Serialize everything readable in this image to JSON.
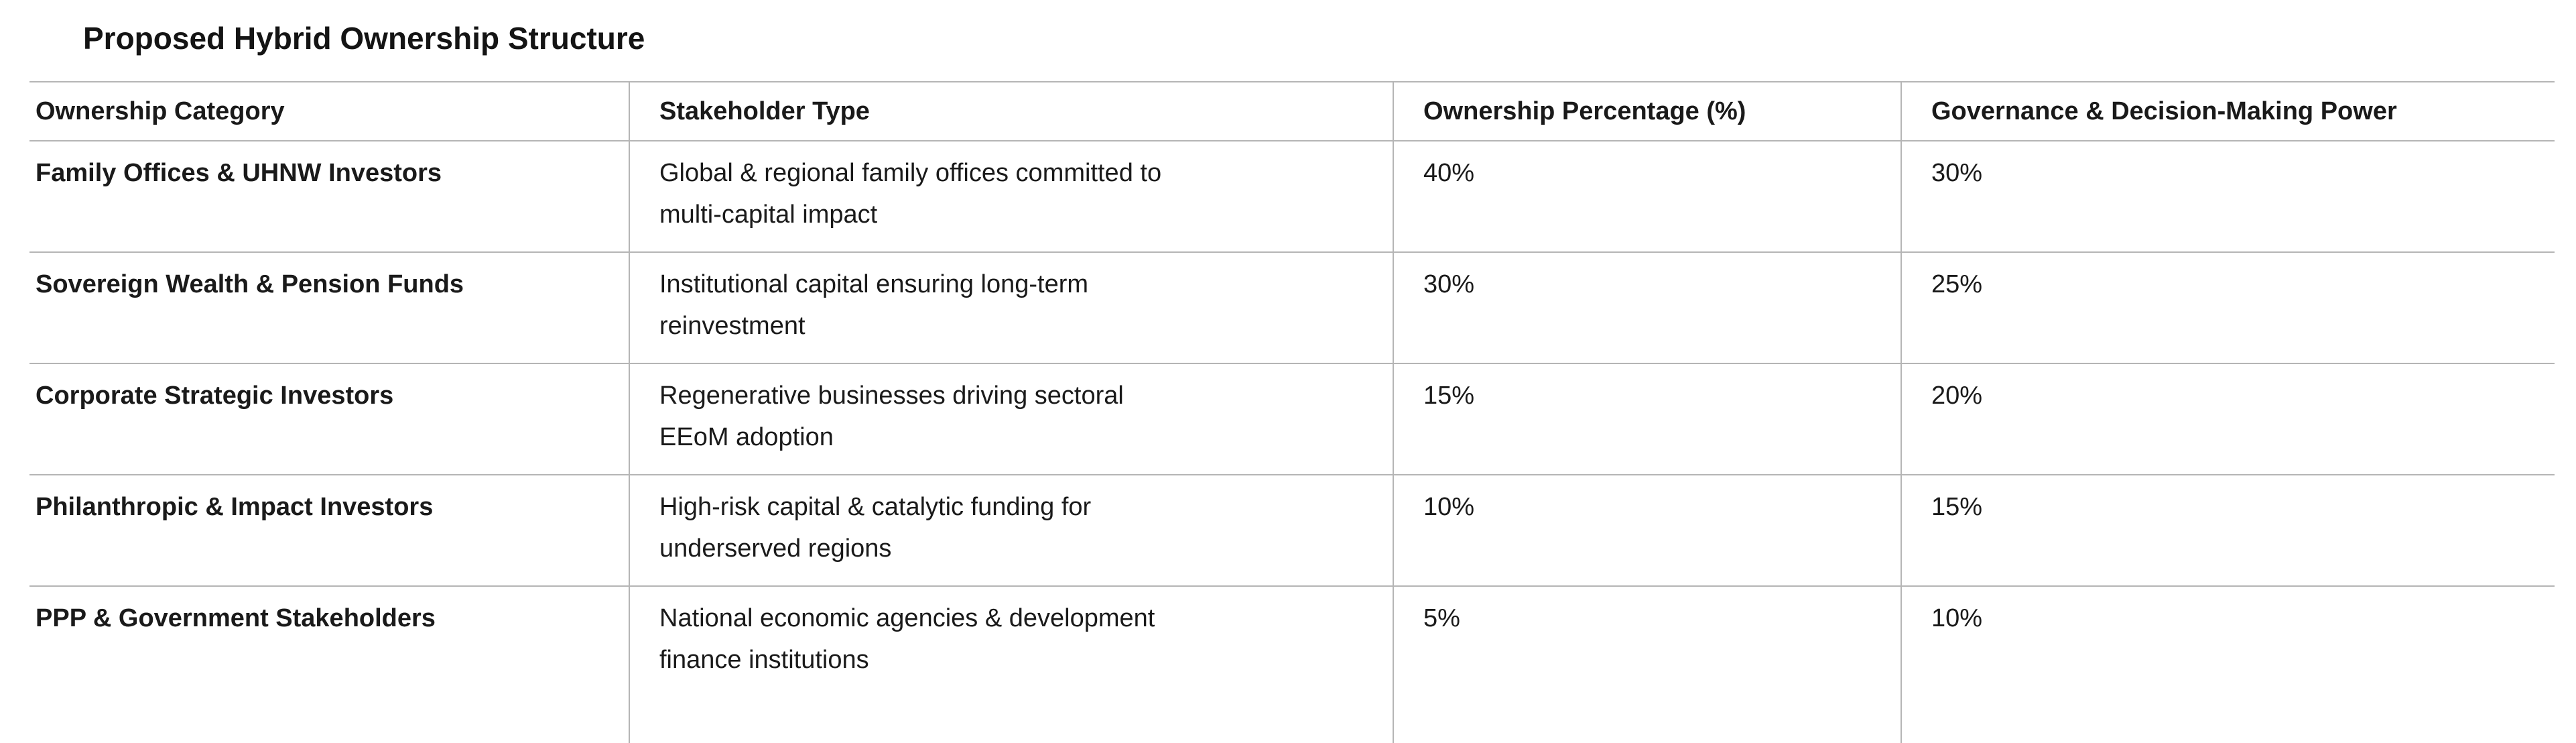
{
  "title": "Proposed Hybrid Ownership Structure",
  "colors": {
    "border": "#b5b5b5",
    "text": "#1a1a1a",
    "background": "#ffffff"
  },
  "table": {
    "columns": [
      "Ownership Category",
      "Stakeholder Type",
      "Ownership Percentage (%)",
      "Governance & Decision-Making Power"
    ],
    "rows": [
      {
        "category": "Family Offices & UHNW Investors",
        "type_lines": [
          "Global & regional family offices committed to",
          "multi-capital impact"
        ],
        "ownership_pct": "40%",
        "governance_pct": "30%"
      },
      {
        "category": "Sovereign Wealth & Pension Funds",
        "type_lines": [
          "Institutional capital ensuring long-term",
          "reinvestment"
        ],
        "ownership_pct": "30%",
        "governance_pct": "25%"
      },
      {
        "category": "Corporate Strategic Investors",
        "type_lines": [
          "Regenerative businesses driving sectoral",
          "EEoM adoption"
        ],
        "ownership_pct": "15%",
        "governance_pct": "20%"
      },
      {
        "category": "Philanthropic & Impact Investors",
        "type_lines": [
          "High-risk capital & catalytic funding for",
          "underserved regions"
        ],
        "ownership_pct": "10%",
        "governance_pct": "15%"
      },
      {
        "category": "PPP & Government Stakeholders",
        "type_lines": [
          "National economic agencies & development",
          "finance institutions"
        ],
        "ownership_pct": "5%",
        "governance_pct": "10%"
      }
    ]
  }
}
